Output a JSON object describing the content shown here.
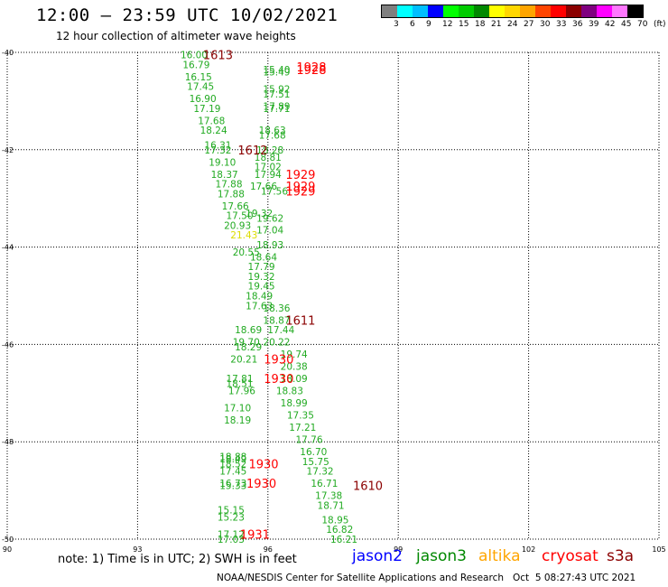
{
  "header": {
    "title": "12:00 – 23:59 UTC 10/02/2021",
    "subtitle": "12 hour collection of altimeter wave heights"
  },
  "legend": {
    "unit": "(ft)",
    "bins": [
      {
        "label": "",
        "color": "#7f7f7f"
      },
      {
        "label": "3",
        "color": "#00ffff"
      },
      {
        "label": "6",
        "color": "#00bfff"
      },
      {
        "label": "9",
        "color": "#0000ff"
      },
      {
        "label": "12",
        "color": "#00ff00"
      },
      {
        "label": "15",
        "color": "#00cc00"
      },
      {
        "label": "18",
        "color": "#008800"
      },
      {
        "label": "21",
        "color": "#ffff00"
      },
      {
        "label": "24",
        "color": "#ffd700"
      },
      {
        "label": "27",
        "color": "#ffa500"
      },
      {
        "label": "30",
        "color": "#ff4500"
      },
      {
        "label": "33",
        "color": "#ff0000"
      },
      {
        "label": "36",
        "color": "#8b0000"
      },
      {
        "label": "39",
        "color": "#800080"
      },
      {
        "label": "42",
        "color": "#ff00ff"
      },
      {
        "label": "45",
        "color": "#ff77ff"
      },
      {
        "label": "70",
        "color": "#000000"
      }
    ]
  },
  "chart_data": {
    "type": "scatter",
    "title": "12:00 – 23:59 UTC 10/02/2021",
    "subtitle": "12 hour collection of altimeter wave heights",
    "xlim": [
      90,
      105
    ],
    "ylim": [
      -50,
      -40
    ],
    "x_ticks": [
      "90",
      "93",
      "96",
      "99",
      "102",
      "105"
    ],
    "y_ticks": [
      "-40",
      "-42",
      "-44",
      "-46",
      "-48",
      "-50"
    ],
    "grid": true,
    "points": [
      {
        "lon": 94.3,
        "lat": -40.05,
        "label": "16.00",
        "color": "#22aa22"
      },
      {
        "lon": 94.35,
        "lat": -40.25,
        "label": "16.79",
        "color": "#22aa22"
      },
      {
        "lon": 94.4,
        "lat": -40.5,
        "label": "16.15",
        "color": "#22aa22"
      },
      {
        "lon": 94.45,
        "lat": -40.7,
        "label": "17.45",
        "color": "#22aa22"
      },
      {
        "lon": 94.5,
        "lat": -40.95,
        "label": "16.90",
        "color": "#22aa22"
      },
      {
        "lon": 94.6,
        "lat": -41.15,
        "label": "17.19",
        "color": "#22aa22"
      },
      {
        "lon": 94.7,
        "lat": -41.4,
        "label": "17.68",
        "color": "#22aa22"
      },
      {
        "lon": 94.75,
        "lat": -41.6,
        "label": "18.24",
        "color": "#22aa22"
      },
      {
        "lon": 94.85,
        "lat": -41.9,
        "label": "16.31",
        "color": "#22aa22"
      },
      {
        "lon": 94.85,
        "lat": -42.0,
        "label": "17.32",
        "color": "#22aa22"
      },
      {
        "lon": 94.95,
        "lat": -42.25,
        "label": "19.10",
        "color": "#22aa22"
      },
      {
        "lon": 95.0,
        "lat": -42.5,
        "label": "18.37",
        "color": "#22aa22"
      },
      {
        "lon": 95.1,
        "lat": -42.7,
        "label": "17.88",
        "color": "#22aa22"
      },
      {
        "lon": 95.15,
        "lat": -42.9,
        "label": "17.88",
        "color": "#22aa22"
      },
      {
        "lon": 95.25,
        "lat": -43.15,
        "label": "17.66",
        "color": "#22aa22"
      },
      {
        "lon": 95.35,
        "lat": -43.35,
        "label": "17.50",
        "color": "#22aa22"
      },
      {
        "lon": 95.3,
        "lat": -43.55,
        "label": "20.93",
        "color": "#22aa22"
      },
      {
        "lon": 95.45,
        "lat": -43.75,
        "label": "21.43",
        "color": "#dddd00"
      },
      {
        "lon": 95.5,
        "lat": -44.1,
        "label": "20.55",
        "color": "#22aa22"
      },
      {
        "lon": 95.8,
        "lat": -43.3,
        "label": "19.32",
        "color": "#22aa22"
      },
      {
        "lon": 96.05,
        "lat": -43.4,
        "label": "19.62",
        "color": "#22aa22"
      },
      {
        "lon": 96.05,
        "lat": -43.65,
        "label": "17.04",
        "color": "#22aa22"
      },
      {
        "lon": 96.05,
        "lat": -43.95,
        "label": "18.93",
        "color": "#22aa22"
      },
      {
        "lon": 95.9,
        "lat": -44.2,
        "label": "18.64",
        "color": "#22aa22"
      },
      {
        "lon": 95.85,
        "lat": -44.4,
        "label": "17.79",
        "color": "#22aa22"
      },
      {
        "lon": 95.85,
        "lat": -44.6,
        "label": "19.32",
        "color": "#22aa22"
      },
      {
        "lon": 95.85,
        "lat": -44.8,
        "label": "19.45",
        "color": "#22aa22"
      },
      {
        "lon": 95.8,
        "lat": -45.0,
        "label": "18.49",
        "color": "#22aa22"
      },
      {
        "lon": 95.8,
        "lat": -45.2,
        "label": "17.63",
        "color": "#22aa22"
      },
      {
        "lon": 96.2,
        "lat": -45.25,
        "label": "18.36",
        "color": "#22aa22"
      },
      {
        "lon": 96.2,
        "lat": -45.5,
        "label": "18.87",
        "color": "#22aa22"
      },
      {
        "lon": 95.55,
        "lat": -45.7,
        "label": "18.69",
        "color": "#22aa22"
      },
      {
        "lon": 96.3,
        "lat": -45.7,
        "label": "17.44",
        "color": "#22aa22"
      },
      {
        "lon": 95.5,
        "lat": -45.95,
        "label": "19.70",
        "color": "#22aa22"
      },
      {
        "lon": 95.55,
        "lat": -46.05,
        "label": "18.29",
        "color": "#22aa22"
      },
      {
        "lon": 96.2,
        "lat": -45.95,
        "label": "20.22",
        "color": "#22aa22"
      },
      {
        "lon": 95.45,
        "lat": -46.3,
        "label": "20.21",
        "color": "#22aa22"
      },
      {
        "lon": 96.6,
        "lat": -46.2,
        "label": "19.74",
        "color": "#22aa22"
      },
      {
        "lon": 96.6,
        "lat": -46.45,
        "label": "20.38",
        "color": "#22aa22"
      },
      {
        "lon": 96.6,
        "lat": -46.7,
        "label": "18.09",
        "color": "#22aa22"
      },
      {
        "lon": 95.35,
        "lat": -46.7,
        "label": "17.81",
        "color": "#22aa22"
      },
      {
        "lon": 95.35,
        "lat": -46.8,
        "label": "18.51",
        "color": "#22aa22"
      },
      {
        "lon": 95.4,
        "lat": -46.95,
        "label": "17.96",
        "color": "#22aa22"
      },
      {
        "lon": 96.5,
        "lat": -46.95,
        "label": "18.83",
        "color": "#22aa22"
      },
      {
        "lon": 96.6,
        "lat": -47.2,
        "label": "18.99",
        "color": "#22aa22"
      },
      {
        "lon": 95.3,
        "lat": -47.3,
        "label": "17.10",
        "color": "#22aa22"
      },
      {
        "lon": 95.3,
        "lat": -47.55,
        "label": "18.19",
        "color": "#22aa22"
      },
      {
        "lon": 96.75,
        "lat": -47.45,
        "label": "17.35",
        "color": "#22aa22"
      },
      {
        "lon": 96.8,
        "lat": -47.7,
        "label": "17.21",
        "color": "#22aa22"
      },
      {
        "lon": 96.95,
        "lat": -47.95,
        "label": "17.76",
        "color": "#22aa22"
      },
      {
        "lon": 97.05,
        "lat": -48.2,
        "label": "16.70",
        "color": "#22aa22"
      },
      {
        "lon": 95.2,
        "lat": -48.3,
        "label": "18.88",
        "color": "#22aa22"
      },
      {
        "lon": 95.2,
        "lat": -48.35,
        "label": "18.49",
        "color": "#22aa22"
      },
      {
        "lon": 95.2,
        "lat": -48.45,
        "label": "18.52",
        "color": "#22aa22"
      },
      {
        "lon": 95.2,
        "lat": -48.6,
        "label": "17.45",
        "color": "#22aa22"
      },
      {
        "lon": 97.1,
        "lat": -48.4,
        "label": "15.75",
        "color": "#22aa22"
      },
      {
        "lon": 97.2,
        "lat": -48.6,
        "label": "17.32",
        "color": "#22aa22"
      },
      {
        "lon": 97.3,
        "lat": -48.85,
        "label": "16.71",
        "color": "#22aa22"
      },
      {
        "lon": 97.4,
        "lat": -49.1,
        "label": "17.38",
        "color": "#22aa22"
      },
      {
        "lon": 95.2,
        "lat": -48.85,
        "label": "16.73",
        "color": "#22aa22"
      },
      {
        "lon": 95.2,
        "lat": -48.9,
        "label": "15.33",
        "color": "#22aa22"
      },
      {
        "lon": 97.45,
        "lat": -49.3,
        "label": "18.71",
        "color": "#22aa22"
      },
      {
        "lon": 97.55,
        "lat": -49.6,
        "label": "18.95",
        "color": "#22aa22"
      },
      {
        "lon": 97.65,
        "lat": -49.8,
        "label": "16.82",
        "color": "#22aa22"
      },
      {
        "lon": 97.75,
        "lat": -50.0,
        "label": "16.21",
        "color": "#22aa22"
      },
      {
        "lon": 95.15,
        "lat": -49.4,
        "label": "15.15",
        "color": "#22aa22"
      },
      {
        "lon": 95.15,
        "lat": -49.55,
        "label": "15.23",
        "color": "#22aa22"
      },
      {
        "lon": 95.15,
        "lat": -49.9,
        "label": "17.12",
        "color": "#22aa22"
      },
      {
        "lon": 95.15,
        "lat": -50.0,
        "label": "17.03",
        "color": "#22aa22"
      },
      {
        "lon": 96.2,
        "lat": -40.35,
        "label": "15.40",
        "color": "#22aa22"
      },
      {
        "lon": 96.2,
        "lat": -40.4,
        "label": "15.49",
        "color": "#22aa22"
      },
      {
        "lon": 96.2,
        "lat": -40.75,
        "label": "15.92",
        "color": "#22aa22"
      },
      {
        "lon": 96.2,
        "lat": -40.85,
        "label": "17.51",
        "color": "#22aa22"
      },
      {
        "lon": 96.2,
        "lat": -41.1,
        "label": "17.89",
        "color": "#22aa22"
      },
      {
        "lon": 96.2,
        "lat": -41.15,
        "label": "17.71",
        "color": "#22aa22"
      },
      {
        "lon": 96.1,
        "lat": -41.6,
        "label": "18.63",
        "color": "#22aa22"
      },
      {
        "lon": 96.1,
        "lat": -41.7,
        "label": "17.68",
        "color": "#22aa22"
      },
      {
        "lon": 96.05,
        "lat": -42.0,
        "label": "18.28",
        "color": "#22aa22"
      },
      {
        "lon": 96.0,
        "lat": -42.15,
        "label": "18.81",
        "color": "#22aa22"
      },
      {
        "lon": 96.0,
        "lat": -42.35,
        "label": "17.02",
        "color": "#22aa22"
      },
      {
        "lon": 96.0,
        "lat": -42.5,
        "label": "17.94",
        "color": "#22aa22"
      },
      {
        "lon": 95.9,
        "lat": -42.75,
        "label": "17.66",
        "color": "#22aa22"
      },
      {
        "lon": 96.15,
        "lat": -42.85,
        "label": "17.56",
        "color": "#22aa22"
      }
    ],
    "passes": [
      {
        "lon": 94.85,
        "lat": -40.05,
        "label": "1613",
        "color": "#8b0000"
      },
      {
        "lon": 97.0,
        "lat": -40.3,
        "label": "1928",
        "color": "#ff0000"
      },
      {
        "lon": 97.0,
        "lat": -40.35,
        "label": "1928",
        "color": "#ff0000"
      },
      {
        "lon": 95.65,
        "lat": -42.0,
        "label": "1612",
        "color": "#8b0000"
      },
      {
        "lon": 96.75,
        "lat": -42.5,
        "label": "1929",
        "color": "#ff0000"
      },
      {
        "lon": 96.75,
        "lat": -42.75,
        "label": "1929",
        "color": "#ff0000"
      },
      {
        "lon": 96.75,
        "lat": -42.85,
        "label": "1929",
        "color": "#ff0000"
      },
      {
        "lon": 96.75,
        "lat": -45.5,
        "label": "1611",
        "color": "#8b0000"
      },
      {
        "lon": 96.25,
        "lat": -46.3,
        "label": "1930",
        "color": "#ff0000"
      },
      {
        "lon": 96.25,
        "lat": -46.7,
        "label": "1930",
        "color": "#ff0000"
      },
      {
        "lon": 95.9,
        "lat": -48.45,
        "label": "1930",
        "color": "#ff0000"
      },
      {
        "lon": 95.85,
        "lat": -48.85,
        "label": "1930",
        "color": "#ff0000"
      },
      {
        "lon": 98.3,
        "lat": -48.9,
        "label": "1610",
        "color": "#8b0000"
      },
      {
        "lon": 95.7,
        "lat": -49.9,
        "label": "1931",
        "color": "#ff0000"
      }
    ]
  },
  "footer": {
    "note": "note: 1) Time is in UTC; 2) SWH is in feet",
    "missions": [
      {
        "name": "jason2",
        "color": "#0000ff"
      },
      {
        "name": "jason3",
        "color": "#008800"
      },
      {
        "name": "altika",
        "color": "#ffa500"
      },
      {
        "name": "cryosat",
        "color": "#ff0000"
      },
      {
        "name": "s3a",
        "color": "#8b0000"
      }
    ],
    "credit": "NOAA/NESDIS Center for Satellite Applications and Research   Oct  5 08:27:43 UTC 2021"
  }
}
